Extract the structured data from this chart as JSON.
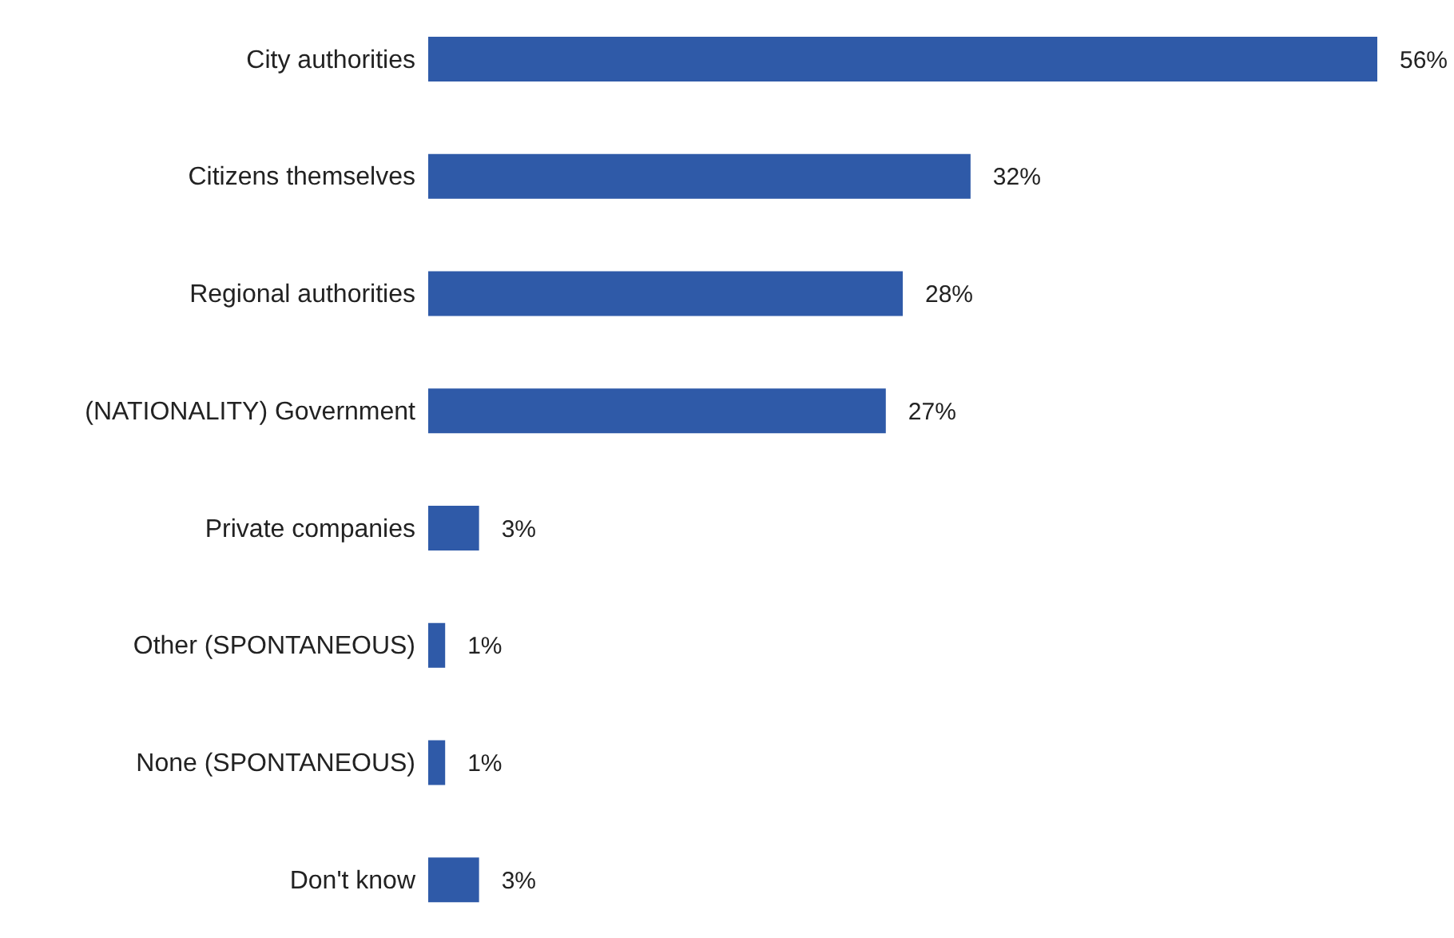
{
  "chart_data": {
    "type": "bar",
    "orientation": "horizontal",
    "tick_labels": "y",
    "categories": [
      "City authorities",
      "Citizens themselves",
      "Regional authorities",
      "(NATIONALITY) Government",
      "Private companies",
      "Other (SPONTANEOUS)",
      "None (SPONTANEOUS)",
      "Don't know"
    ],
    "values": [
      56,
      32,
      28,
      27,
      3,
      1,
      1,
      3
    ],
    "value_labels": [
      "56%",
      "32%",
      "28%",
      "27%",
      "3%",
      "1%",
      "1%",
      "3%"
    ],
    "color": "#2f5aa8",
    "grid": false,
    "legend": false
  }
}
